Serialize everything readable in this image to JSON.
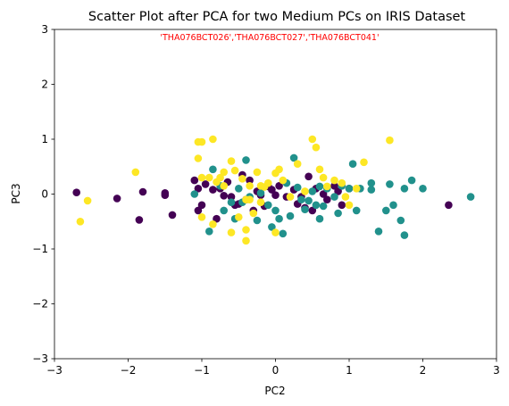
{
  "chart_data": {
    "type": "scatter",
    "title": "Scatter Plot after PCA for two Medium PCs on IRIS Dataset",
    "annotation": "'THA076BCT026','THA076BCT027','THA076BCT041'",
    "annotation_color": "#ff0000",
    "xlabel": "PC2",
    "ylabel": "PC3",
    "xlim": [
      -3,
      3
    ],
    "ylim": [
      -3,
      3
    ],
    "xticks": [
      "−3",
      "−2",
      "−1",
      "0",
      "1",
      "2",
      "3"
    ],
    "yticks": [
      "−3",
      "−2",
      "−1",
      "0",
      "1",
      "2",
      "3"
    ],
    "grid": false,
    "legend": "none",
    "series": [
      {
        "color": "#440154",
        "points": [
          [
            -2.7,
            0.03
          ],
          [
            -2.15,
            -0.08
          ],
          [
            -1.85,
            -0.47
          ],
          [
            -1.8,
            0.04
          ],
          [
            -1.5,
            0.02
          ],
          [
            -1.5,
            -0.02
          ],
          [
            -1.4,
            -0.38
          ],
          [
            -1.1,
            0.25
          ],
          [
            -1.05,
            -0.3
          ],
          [
            -1.05,
            0.1
          ],
          [
            -1.0,
            -0.2
          ],
          [
            -0.95,
            0.18
          ],
          [
            -0.85,
            0.08
          ],
          [
            -0.75,
            0.1
          ],
          [
            -0.7,
            -0.03
          ],
          [
            -0.65,
            0.22
          ],
          [
            -0.6,
            -0.05
          ],
          [
            -0.55,
            -0.2
          ],
          [
            -0.5,
            -0.18
          ],
          [
            -0.45,
            0.35
          ],
          [
            -0.4,
            -0.1
          ],
          [
            -0.35,
            0.25
          ],
          [
            -0.3,
            -0.3
          ],
          [
            -0.25,
            0.05
          ],
          [
            -0.2,
            -0.02
          ],
          [
            -0.15,
            -0.22
          ],
          [
            -0.1,
            0.14
          ],
          [
            -0.05,
            0.08
          ],
          [
            0.0,
            -0.02
          ],
          [
            0.05,
            0.15
          ],
          [
            0.15,
            -0.05
          ],
          [
            0.25,
            0.08
          ],
          [
            0.3,
            -0.18
          ],
          [
            0.35,
            -0.05
          ],
          [
            0.4,
            -0.25
          ],
          [
            0.45,
            0.32
          ],
          [
            0.5,
            -0.3
          ],
          [
            0.55,
            0.1
          ],
          [
            0.65,
            0.0
          ],
          [
            0.7,
            -0.1
          ],
          [
            0.8,
            0.15
          ],
          [
            0.85,
            0.05
          ],
          [
            0.9,
            -0.2
          ],
          [
            1.0,
            0.1
          ],
          [
            2.35,
            -0.2
          ],
          [
            -0.8,
            -0.45
          ]
        ]
      },
      {
        "color": "#21918c",
        "points": [
          [
            -0.85,
            0.45
          ],
          [
            -0.9,
            -0.68
          ],
          [
            -0.75,
            0.15
          ],
          [
            -0.7,
            -0.3
          ],
          [
            -0.6,
            -0.15
          ],
          [
            -0.55,
            -0.45
          ],
          [
            -0.5,
            0.1
          ],
          [
            -0.45,
            -0.15
          ],
          [
            -0.4,
            0.62
          ],
          [
            -0.35,
            -0.05
          ],
          [
            -0.25,
            -0.48
          ],
          [
            -0.2,
            0.02
          ],
          [
            -0.1,
            -0.2
          ],
          [
            0.0,
            -0.3
          ],
          [
            -0.05,
            -0.6
          ],
          [
            0.05,
            -0.45
          ],
          [
            0.1,
            -0.72
          ],
          [
            0.15,
            0.2
          ],
          [
            0.2,
            -0.4
          ],
          [
            0.25,
            0.66
          ],
          [
            0.3,
            0.12
          ],
          [
            0.35,
            -0.1
          ],
          [
            0.4,
            -0.28
          ],
          [
            0.45,
            -0.12
          ],
          [
            0.5,
            0.05
          ],
          [
            0.55,
            -0.2
          ],
          [
            0.6,
            0.14
          ],
          [
            0.65,
            -0.22
          ],
          [
            0.7,
            0.1
          ],
          [
            0.8,
            -0.05
          ],
          [
            0.85,
            -0.35
          ],
          [
            0.9,
            0.15
          ],
          [
            1.0,
            0.1
          ],
          [
            1.05,
            0.55
          ],
          [
            1.1,
            -0.3
          ],
          [
            1.15,
            0.1
          ],
          [
            1.3,
            0.08
          ],
          [
            1.4,
            -0.68
          ],
          [
            1.5,
            -0.3
          ],
          [
            1.55,
            0.18
          ],
          [
            1.6,
            -0.2
          ],
          [
            1.7,
            -0.48
          ],
          [
            1.75,
            -0.75
          ],
          [
            1.75,
            0.1
          ],
          [
            1.85,
            0.25
          ],
          [
            2.0,
            0.1
          ],
          [
            2.65,
            -0.05
          ],
          [
            1.3,
            0.2
          ],
          [
            -1.1,
            0.0
          ],
          [
            0.6,
            -0.45
          ]
        ]
      },
      {
        "color": "#fde725",
        "points": [
          [
            -2.65,
            -0.5
          ],
          [
            -2.55,
            -0.12
          ],
          [
            -1.9,
            0.4
          ],
          [
            -1.05,
            0.95
          ],
          [
            -1.0,
            0.95
          ],
          [
            -0.85,
            1.0
          ],
          [
            -1.05,
            0.65
          ],
          [
            -1.0,
            0.3
          ],
          [
            -0.9,
            0.3
          ],
          [
            -0.8,
            0.22
          ],
          [
            -0.7,
            0.15
          ],
          [
            -0.6,
            0.6
          ],
          [
            -0.55,
            0.43
          ],
          [
            -0.5,
            -0.42
          ],
          [
            -0.45,
            0.28
          ],
          [
            -0.4,
            -0.1
          ],
          [
            -0.35,
            0.15
          ],
          [
            -0.3,
            -0.35
          ],
          [
            -0.25,
            0.4
          ],
          [
            -0.2,
            -0.15
          ],
          [
            -0.15,
            0.13
          ],
          [
            -0.1,
            0.2
          ],
          [
            0.0,
            0.38
          ],
          [
            0.05,
            0.45
          ],
          [
            0.1,
            0.25
          ],
          [
            0.2,
            -0.05
          ],
          [
            0.3,
            0.55
          ],
          [
            0.4,
            0.05
          ],
          [
            0.5,
            1.0
          ],
          [
            0.55,
            0.85
          ],
          [
            0.6,
            0.45
          ],
          [
            0.7,
            0.14
          ],
          [
            0.8,
            0.25
          ],
          [
            0.9,
            0.2
          ],
          [
            1.0,
            -0.2
          ],
          [
            1.2,
            0.58
          ],
          [
            1.55,
            0.98
          ],
          [
            -0.6,
            -0.7
          ],
          [
            -0.4,
            -0.85
          ],
          [
            -0.4,
            -0.65
          ],
          [
            0.0,
            -0.7
          ],
          [
            -1.0,
            -0.42
          ],
          [
            -0.85,
            -0.55
          ],
          [
            -0.7,
            0.4
          ],
          [
            -0.35,
            -0.1
          ],
          [
            0.65,
            0.3
          ],
          [
            -0.75,
            0.3
          ],
          [
            1.1,
            0.1
          ],
          [
            -0.2,
            0.15
          ],
          [
            0.95,
            -0.05
          ]
        ]
      }
    ]
  }
}
